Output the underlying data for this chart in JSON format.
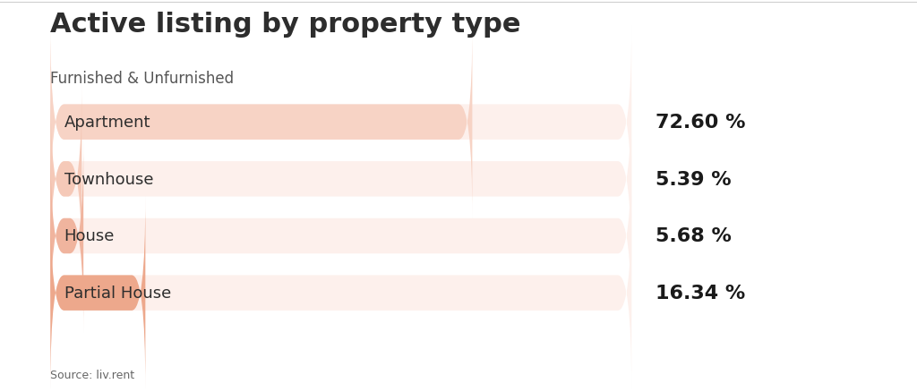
{
  "title": "Active listing by property type",
  "subtitle": "Furnished & Unfurnished",
  "source": "Source: liv.rent",
  "categories": [
    "Apartment",
    "Townhouse",
    "House",
    "Partial House"
  ],
  "values": [
    72.6,
    5.39,
    5.68,
    16.34
  ],
  "value_labels": [
    "72.60 %",
    "5.39 %",
    "5.68 %",
    "16.34 %"
  ],
  "bar_bg_color": "#fdf0ec",
  "bar_fill_colors": [
    "#f7d3c5",
    "#f5c9b8",
    "#f0b49e",
    "#eda88c"
  ],
  "text_color": "#2d2d2d",
  "pct_color": "#1a1a1a",
  "bg_color": "#ffffff",
  "title_fontsize": 22,
  "subtitle_fontsize": 12,
  "label_fontsize": 13,
  "pct_fontsize": 16,
  "source_fontsize": 9,
  "bar_max": 100
}
